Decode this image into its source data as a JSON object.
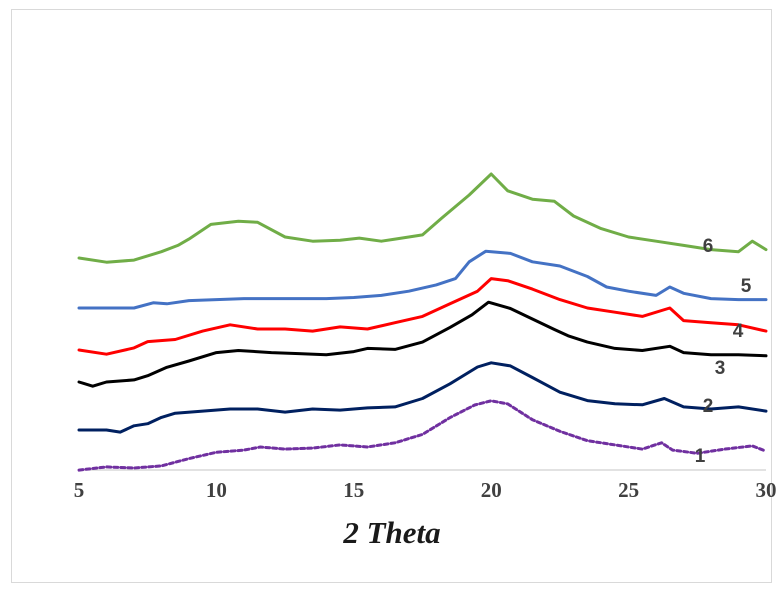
{
  "chart_data": {
    "type": "line",
    "title": "",
    "xlabel": "2 Theta",
    "ylabel": "",
    "xlim": [
      5,
      30
    ],
    "x_ticks": [
      5,
      10,
      15,
      20,
      25,
      30
    ],
    "grid": false,
    "legend": "none",
    "series": [
      {
        "name": "1",
        "color": "#7030a0",
        "dash": "4,3",
        "points": [
          [
            5,
            -0.1
          ],
          [
            6,
            0.05
          ],
          [
            7,
            0.0
          ],
          [
            8,
            0.1
          ],
          [
            9,
            0.45
          ],
          [
            10,
            0.75
          ],
          [
            11,
            0.85
          ],
          [
            11.6,
            1.0
          ],
          [
            12.5,
            0.9
          ],
          [
            13.5,
            0.95
          ],
          [
            14.5,
            1.1
          ],
          [
            15.5,
            1.0
          ],
          [
            16.5,
            1.2
          ],
          [
            17.5,
            1.6
          ],
          [
            18.5,
            2.4
          ],
          [
            19.4,
            3.0
          ],
          [
            20,
            3.2
          ],
          [
            20.6,
            3.05
          ],
          [
            21.5,
            2.3
          ],
          [
            22.5,
            1.75
          ],
          [
            23.5,
            1.3
          ],
          [
            24.5,
            1.1
          ],
          [
            25.5,
            0.9
          ],
          [
            26.2,
            1.2
          ],
          [
            26.6,
            0.85
          ],
          [
            27.5,
            0.7
          ],
          [
            28.5,
            0.9
          ],
          [
            29.5,
            1.05
          ],
          [
            30,
            0.8
          ]
        ]
      },
      {
        "name": "2",
        "color": "#002060",
        "dash": "",
        "points": [
          [
            5,
            0.0
          ],
          [
            6,
            0.0
          ],
          [
            6.5,
            -0.1
          ],
          [
            7,
            0.2
          ],
          [
            7.5,
            0.3
          ],
          [
            8,
            0.6
          ],
          [
            8.5,
            0.8
          ],
          [
            9.5,
            0.9
          ],
          [
            10.5,
            1.0
          ],
          [
            11.5,
            1.0
          ],
          [
            12.5,
            0.85
          ],
          [
            13.5,
            1.0
          ],
          [
            14.5,
            0.95
          ],
          [
            15.5,
            1.05
          ],
          [
            16.5,
            1.1
          ],
          [
            17.5,
            1.5
          ],
          [
            18.5,
            2.2
          ],
          [
            19.5,
            3.0
          ],
          [
            20,
            3.2
          ],
          [
            20.7,
            3.05
          ],
          [
            21.5,
            2.5
          ],
          [
            22.5,
            1.8
          ],
          [
            23.5,
            1.4
          ],
          [
            24.5,
            1.25
          ],
          [
            25.5,
            1.2
          ],
          [
            26.3,
            1.5
          ],
          [
            27,
            1.1
          ],
          [
            28,
            1.0
          ],
          [
            29,
            1.1
          ],
          [
            30,
            0.9
          ]
        ]
      },
      {
        "name": "3",
        "color": "#000000",
        "dash": "",
        "points": [
          [
            5,
            0.0
          ],
          [
            5.5,
            -0.2
          ],
          [
            6,
            0.0
          ],
          [
            7,
            0.1
          ],
          [
            7.5,
            0.3
          ],
          [
            8.2,
            0.7
          ],
          [
            9,
            1.0
          ],
          [
            10,
            1.4
          ],
          [
            10.8,
            1.5
          ],
          [
            12,
            1.4
          ],
          [
            13,
            1.35
          ],
          [
            14,
            1.3
          ],
          [
            15,
            1.45
          ],
          [
            15.5,
            1.6
          ],
          [
            16.5,
            1.55
          ],
          [
            17.5,
            1.9
          ],
          [
            18.5,
            2.6
          ],
          [
            19.3,
            3.2
          ],
          [
            19.9,
            3.8
          ],
          [
            20.7,
            3.5
          ],
          [
            21.5,
            3.0
          ],
          [
            22.3,
            2.5
          ],
          [
            22.8,
            2.2
          ],
          [
            23.5,
            1.9
          ],
          [
            24.5,
            1.6
          ],
          [
            25.5,
            1.5
          ],
          [
            26.5,
            1.7
          ],
          [
            27,
            1.4
          ],
          [
            28,
            1.3
          ],
          [
            29,
            1.3
          ],
          [
            30,
            1.25
          ]
        ]
      },
      {
        "name": "4",
        "color": "#ff0000",
        "dash": "",
        "points": [
          [
            5,
            0.0
          ],
          [
            6,
            -0.2
          ],
          [
            7,
            0.1
          ],
          [
            7.5,
            0.4
          ],
          [
            8.5,
            0.5
          ],
          [
            9.5,
            0.9
          ],
          [
            10.5,
            1.2
          ],
          [
            11.5,
            1.0
          ],
          [
            12.5,
            1.0
          ],
          [
            13.5,
            0.9
          ],
          [
            14.5,
            1.1
          ],
          [
            15.5,
            1.0
          ],
          [
            16.5,
            1.3
          ],
          [
            17.5,
            1.6
          ],
          [
            18.5,
            2.2
          ],
          [
            19.5,
            2.8
          ],
          [
            20,
            3.4
          ],
          [
            20.6,
            3.3
          ],
          [
            21.5,
            2.9
          ],
          [
            22.5,
            2.4
          ],
          [
            23.5,
            2.0
          ],
          [
            24.5,
            1.8
          ],
          [
            25.5,
            1.6
          ],
          [
            26.5,
            2.0
          ],
          [
            27,
            1.4
          ],
          [
            28,
            1.3
          ],
          [
            29,
            1.2
          ],
          [
            30,
            0.9
          ]
        ]
      },
      {
        "name": "5",
        "color": "#4472c4",
        "dash": "",
        "points": [
          [
            5,
            0.0
          ],
          [
            7,
            0.0
          ],
          [
            7.7,
            0.25
          ],
          [
            8.2,
            0.2
          ],
          [
            9,
            0.35
          ],
          [
            10,
            0.4
          ],
          [
            11,
            0.45
          ],
          [
            12,
            0.45
          ],
          [
            13,
            0.45
          ],
          [
            14,
            0.45
          ],
          [
            15,
            0.5
          ],
          [
            16,
            0.6
          ],
          [
            17,
            0.8
          ],
          [
            18,
            1.1
          ],
          [
            18.7,
            1.4
          ],
          [
            19.2,
            2.2
          ],
          [
            19.8,
            2.7
          ],
          [
            20.7,
            2.6
          ],
          [
            21.5,
            2.2
          ],
          [
            22.5,
            2.0
          ],
          [
            23.5,
            1.5
          ],
          [
            24.2,
            1.0
          ],
          [
            25,
            0.8
          ],
          [
            26,
            0.6
          ],
          [
            26.5,
            1.0
          ],
          [
            27,
            0.7
          ],
          [
            28,
            0.45
          ],
          [
            29,
            0.4
          ],
          [
            30,
            0.4
          ]
        ]
      },
      {
        "name": "6",
        "color": "#70ad47",
        "dash": "",
        "points": [
          [
            5,
            0.0
          ],
          [
            6,
            -0.2
          ],
          [
            7,
            -0.1
          ],
          [
            8,
            0.3
          ],
          [
            8.6,
            0.6
          ],
          [
            9,
            0.9
          ],
          [
            9.8,
            1.6
          ],
          [
            10.8,
            1.75
          ],
          [
            11.5,
            1.7
          ],
          [
            12.5,
            1.0
          ],
          [
            13.5,
            0.8
          ],
          [
            14.5,
            0.85
          ],
          [
            15.2,
            0.95
          ],
          [
            16,
            0.8
          ],
          [
            16.5,
            0.9
          ],
          [
            17,
            1.0
          ],
          [
            17.5,
            1.1
          ],
          [
            18.2,
            1.9
          ],
          [
            19.2,
            3.0
          ],
          [
            20,
            4.0
          ],
          [
            20.6,
            3.2
          ],
          [
            21.5,
            2.8
          ],
          [
            22.3,
            2.7
          ],
          [
            23,
            2.0
          ],
          [
            24,
            1.4
          ],
          [
            25,
            1.0
          ],
          [
            26,
            0.8
          ],
          [
            27,
            0.6
          ],
          [
            28,
            0.4
          ],
          [
            29,
            0.3
          ],
          [
            29.5,
            0.8
          ],
          [
            30,
            0.4
          ]
        ]
      }
    ],
    "series_labels": [
      "1",
      "2",
      "3",
      "4",
      "5",
      "6"
    ]
  }
}
